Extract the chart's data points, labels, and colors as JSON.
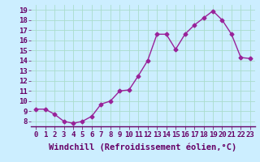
{
  "x": [
    0,
    1,
    2,
    3,
    4,
    5,
    6,
    7,
    8,
    9,
    10,
    11,
    12,
    13,
    14,
    15,
    16,
    17,
    18,
    19,
    20,
    21,
    22,
    23
  ],
  "y": [
    9.2,
    9.2,
    8.7,
    8.0,
    7.8,
    8.0,
    8.5,
    9.7,
    10.0,
    11.0,
    11.1,
    12.5,
    14.0,
    16.6,
    16.6,
    15.1,
    16.6,
    17.5,
    18.2,
    18.9,
    18.0,
    16.6,
    14.3,
    14.2
  ],
  "line_color": "#992299",
  "marker": "D",
  "marker_size": 2.5,
  "bg_color": "#cceeff",
  "grid_color": "#aaddcc",
  "xlabel": "Windchill (Refroidissement éolien,°C)",
  "xlim": [
    -0.5,
    23.5
  ],
  "ylim": [
    7.5,
    19.5
  ],
  "yticks": [
    8,
    9,
    10,
    11,
    12,
    13,
    14,
    15,
    16,
    17,
    18,
    19
  ],
  "xticks": [
    0,
    1,
    2,
    3,
    4,
    5,
    6,
    7,
    8,
    9,
    10,
    11,
    12,
    13,
    14,
    15,
    16,
    17,
    18,
    19,
    20,
    21,
    22,
    23
  ],
  "tick_label_size": 6.5,
  "xlabel_size": 7.5,
  "linewidth": 1.0
}
